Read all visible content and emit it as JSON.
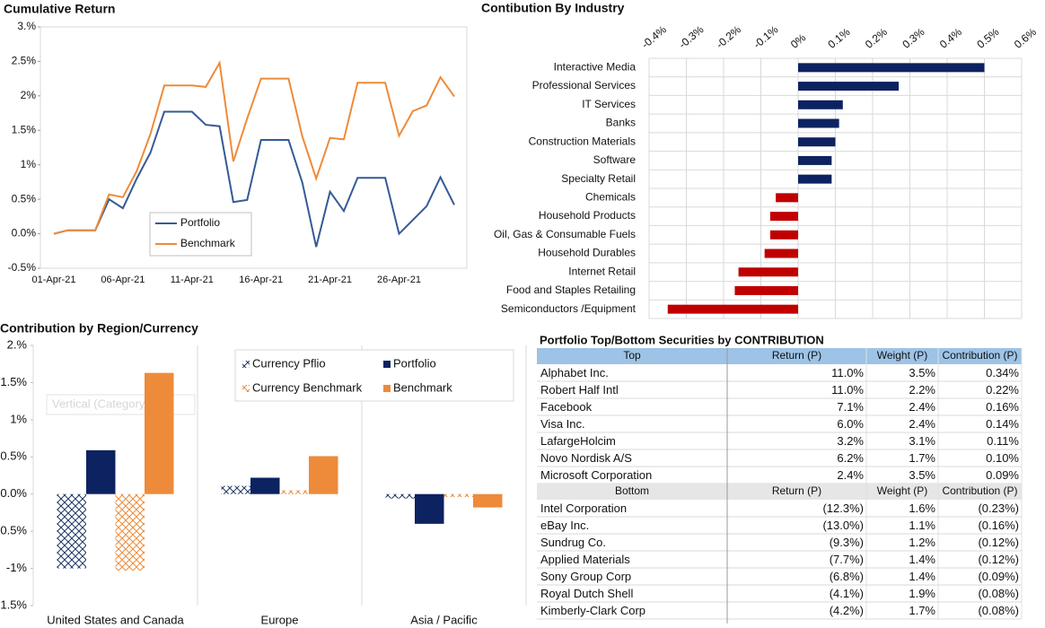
{
  "chart_data": [
    {
      "type": "line",
      "title": "Cumulative Return",
      "categories": [
        "01-Apr-21",
        null,
        null,
        null,
        null,
        "06-Apr-21",
        null,
        null,
        null,
        null,
        "11-Apr-21",
        null,
        null,
        null,
        null,
        "16-Apr-21",
        null,
        null,
        null,
        null,
        "21-Apr-21",
        null,
        null,
        null,
        null,
        "26-Apr-21",
        null,
        null,
        null,
        null
      ],
      "series": [
        {
          "name": "Portfolio",
          "color": "#355a96",
          "values": [
            0,
            0.05,
            0.05,
            0.05,
            0.5,
            0.37,
            0.8,
            1.18,
            1.77,
            1.77,
            1.77,
            1.58,
            1.56,
            0.46,
            0.49,
            1.36,
            1.36,
            1.36,
            0.74,
            -0.19,
            0.61,
            0.33,
            0.81,
            0.81,
            0.81,
            0.0,
            0.2,
            0.4,
            0.82,
            0.42
          ]
        },
        {
          "name": "Benchmark",
          "color": "#ed8b3a",
          "values": [
            0,
            0.05,
            0.05,
            0.05,
            0.57,
            0.53,
            0.91,
            1.45,
            2.15,
            2.15,
            2.15,
            2.13,
            2.48,
            1.05,
            1.67,
            2.25,
            2.25,
            2.25,
            1.41,
            0.8,
            1.39,
            1.37,
            2.19,
            2.19,
            2.19,
            1.42,
            1.78,
            1.86,
            2.27,
            1.99
          ]
        }
      ],
      "ylim": [
        -0.5,
        3
      ],
      "yticks": [
        {
          "value": -0.5,
          "label": "-0.5%"
        },
        {
          "value": 0,
          "label": "0.0%"
        },
        {
          "value": 0.5,
          "label": "0.5%"
        },
        {
          "value": 1,
          "label": "1%"
        },
        {
          "value": 1.5,
          "label": "1.5%"
        },
        {
          "value": 2,
          "label": "2%"
        },
        {
          "value": 2.5,
          "label": "2.5%"
        },
        {
          "value": 3,
          "label": "3.%"
        }
      ],
      "legend": "lower left"
    },
    {
      "type": "barh",
      "title": "Contibution By Industry",
      "categories": [
        "Interactive Media",
        "Professional Services",
        "IT Services",
        "Banks",
        "Construction Materials",
        "Software",
        "Specialty Retail",
        "Chemicals",
        "Household Products",
        "Oil, Gas & Consumable Fuels",
        "Household Durables",
        "Internet Retail",
        "Food and Staples Retailing",
        "Semiconductors /Equipment"
      ],
      "values": [
        0.5,
        0.27,
        0.12,
        0.11,
        0.1,
        0.09,
        0.09,
        -0.06,
        -0.075,
        -0.075,
        -0.09,
        -0.16,
        -0.17,
        -0.35
      ],
      "color": "#0d2260",
      "negative_color": "#c00000",
      "xlim": [
        -0.4,
        0.6
      ],
      "xticks": [
        {
          "value": -0.4,
          "label": "-0.4%"
        },
        {
          "value": -0.3,
          "label": "-0.3%"
        },
        {
          "value": -0.2,
          "label": "-0.2%"
        },
        {
          "value": -0.1,
          "label": "-0.1%"
        },
        {
          "value": 0,
          "label": "0%"
        },
        {
          "value": 0.1,
          "label": "0.1%"
        },
        {
          "value": 0.2,
          "label": "0.2%"
        },
        {
          "value": 0.3,
          "label": "0.3%"
        },
        {
          "value": 0.4,
          "label": "0.4%"
        },
        {
          "value": 0.5,
          "label": "0.5%"
        },
        {
          "value": 0.6,
          "label": "0.6%"
        }
      ],
      "grid": true
    },
    {
      "type": "bar",
      "title": "Contribution by Region/Currency",
      "categories": [
        "United States and Canada",
        "Europe",
        "Asia / Pacific"
      ],
      "series": [
        {
          "name": "Currency Pflio",
          "color": "#1f3864",
          "pattern": true,
          "values": [
            -1.0,
            0.11,
            -0.06
          ]
        },
        {
          "name": "Portfolio",
          "color": "#0d2260",
          "pattern": false,
          "values": [
            0.59,
            0.22,
            -0.4
          ]
        },
        {
          "name": "Currency Benchmark",
          "color": "#ed8b3a",
          "pattern": true,
          "values": [
            -1.03,
            0.05,
            -0.04
          ]
        },
        {
          "name": "Benchmark",
          "color": "#ed8b3a",
          "pattern": false,
          "values": [
            1.63,
            0.51,
            -0.18
          ]
        }
      ],
      "ylim": [
        -1.5,
        2
      ],
      "yticks": [
        {
          "value": -1.5,
          "label": "1.5%"
        },
        {
          "value": -1,
          "label": "-1%"
        },
        {
          "value": -0.5,
          "label": "0.5%"
        },
        {
          "value": 0,
          "label": "0.0%"
        },
        {
          "value": 0.5,
          "label": "0.5%"
        },
        {
          "value": 1,
          "label": "1%"
        },
        {
          "value": 1.5,
          "label": "1.5%"
        },
        {
          "value": 2,
          "label": "2.%"
        }
      ],
      "annotation": "Vertical (Category) Ax",
      "legend": "upper right"
    }
  ],
  "table": {
    "title": "Portfolio Top/Bottom Securities by CONTRIBUTION",
    "top": {
      "header": [
        "Top",
        "Return (P)",
        "Weight (P)",
        "Contribution (P)"
      ],
      "rows": [
        [
          "Alphabet Inc.",
          "11.0%",
          "3.5%",
          "0.34%"
        ],
        [
          "Robert Half Intl",
          "11.0%",
          "2.2%",
          "0.22%"
        ],
        [
          "Facebook",
          "7.1%",
          "2.4%",
          "0.16%"
        ],
        [
          "Visa Inc.",
          "6.0%",
          "2.4%",
          "0.14%"
        ],
        [
          "LafargeHolcim",
          "3.2%",
          "3.1%",
          "0.11%"
        ],
        [
          "Novo Nordisk A/S",
          "6.2%",
          "1.7%",
          "0.10%"
        ],
        [
          "Microsoft Corporation",
          "2.4%",
          "3.5%",
          "0.09%"
        ]
      ]
    },
    "bottom": {
      "header": [
        "Bottom",
        "Return (P)",
        "Weight (P)",
        "Contribution (P)"
      ],
      "rows": [
        [
          "Intel Corporation",
          "(12.3%)",
          "1.6%",
          "(0.23%)"
        ],
        [
          "eBay Inc.",
          "(13.0%)",
          "1.1%",
          "(0.16%)"
        ],
        [
          "Sundrug Co.",
          "(9.3%)",
          "1.2%",
          "(0.12%)"
        ],
        [
          "Applied Materials",
          "(7.7%)",
          "1.4%",
          "(0.12%)"
        ],
        [
          "Sony Group Corp",
          "(6.8%)",
          "1.4%",
          "(0.09%)"
        ],
        [
          "Royal Dutch Shell",
          "(4.1%)",
          "1.9%",
          "(0.08%)"
        ],
        [
          "Kimberly-Clark Corp",
          "(4.2%)",
          "1.7%",
          "(0.08%)"
        ]
      ]
    }
  }
}
